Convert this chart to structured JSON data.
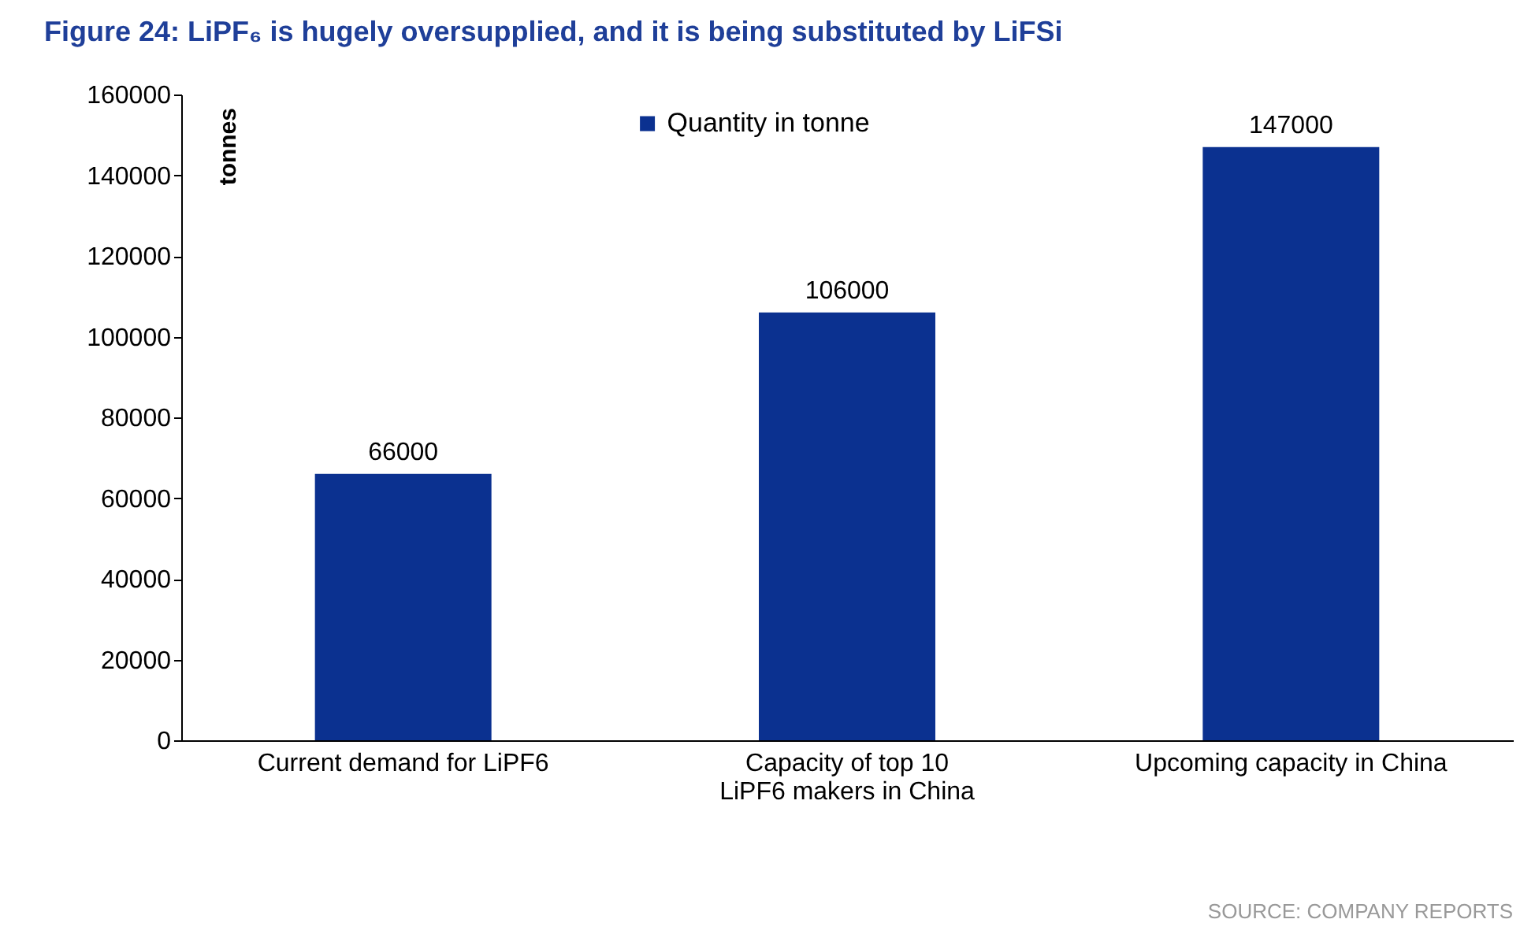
{
  "chart_data": {
    "type": "bar",
    "title": "Figure 24: LiPF₆ is hugely oversupplied, and it is being substituted by LiFSi",
    "ylabel": "tonnes",
    "categories": [
      "Current demand  for LiPF6",
      "Capacity of top 10 LiPF6 makers in China",
      "Upcoming capacity in China"
    ],
    "series": [
      {
        "name": "Quantity  in tonne",
        "color": "#0b3190",
        "values": [
          66000,
          106000,
          147000
        ]
      }
    ],
    "ylim": [
      0,
      160000
    ],
    "yticks": [
      0,
      20000,
      40000,
      60000,
      80000,
      100000,
      120000,
      140000,
      160000
    ],
    "data_labels": true,
    "legend": "top",
    "annotations": [
      "SOURCE: COMPANY REPORTS"
    ]
  }
}
